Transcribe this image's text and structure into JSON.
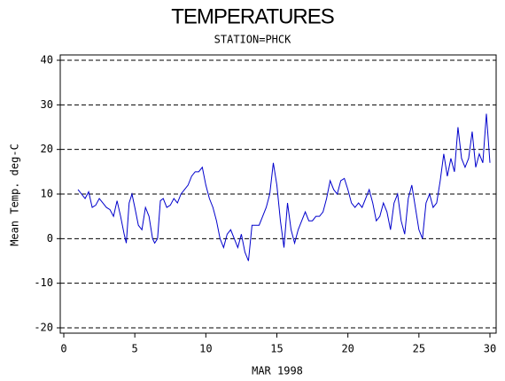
{
  "chart_data": {
    "type": "line",
    "title": "TEMPERATURES",
    "subtitle": "STATION=PHCK",
    "x_label": "MAR 1998",
    "y_label": "Mean Temp. deg-C",
    "x": [
      1,
      1.25,
      1.5,
      1.75,
      2,
      2.25,
      2.5,
      2.75,
      3,
      3.25,
      3.5,
      3.75,
      4,
      4.25,
      4.4,
      4.6,
      4.8,
      5,
      5.25,
      5.5,
      5.75,
      6,
      6.25,
      6.4,
      6.6,
      6.8,
      7,
      7.25,
      7.5,
      7.75,
      8,
      8.25,
      8.5,
      8.75,
      9,
      9.25,
      9.5,
      9.75,
      10,
      10.25,
      10.5,
      10.75,
      11,
      11.25,
      11.5,
      11.75,
      12,
      12.25,
      12.5,
      12.75,
      13,
      13.25,
      13.5,
      13.75,
      14,
      14.25,
      14.5,
      14.75,
      15,
      15.25,
      15.5,
      15.75,
      16,
      16.25,
      16.5,
      16.75,
      17,
      17.25,
      17.5,
      17.75,
      18,
      18.25,
      18.5,
      18.75,
      19,
      19.25,
      19.5,
      19.75,
      20,
      20.25,
      20.5,
      20.75,
      21,
      21.25,
      21.5,
      21.75,
      22,
      22.25,
      22.5,
      22.75,
      23,
      23.25,
      23.5,
      23.75,
      24,
      24.25,
      24.5,
      24.75,
      25,
      25.25,
      25.5,
      25.75,
      26,
      26.25,
      26.5,
      26.75,
      27,
      27.25,
      27.5,
      27.75,
      28,
      28.25,
      28.5,
      28.75,
      29,
      29.25,
      29.5,
      29.75,
      30
    ],
    "series": [
      {
        "name": "Mean Temp",
        "color": "#0000cc",
        "values": [
          11,
          10,
          9,
          10.5,
          7,
          7.5,
          9,
          8,
          7,
          6.5,
          5,
          8.5,
          5,
          1,
          -1,
          8,
          10,
          7,
          3,
          2,
          7,
          5,
          0,
          -1,
          0,
          8.5,
          9,
          7,
          7.5,
          9,
          8,
          10,
          11,
          12,
          14,
          15,
          15,
          16,
          12,
          9,
          7,
          4,
          0,
          -2,
          1,
          2,
          0,
          -2,
          1,
          -3,
          -5,
          3,
          3,
          3,
          5,
          7,
          10,
          17,
          12,
          4,
          -2,
          8,
          2,
          -1,
          2,
          4,
          6,
          4,
          4,
          5,
          5,
          6,
          9,
          13,
          11,
          10,
          13,
          13.5,
          11,
          8,
          7,
          8,
          7,
          9,
          11,
          8,
          4,
          5,
          8,
          6,
          2,
          8,
          10,
          4,
          1,
          9,
          12,
          7,
          2,
          0,
          8,
          10,
          7,
          8,
          13,
          19,
          14,
          18,
          15,
          25,
          18,
          16,
          18,
          24,
          16,
          19,
          17,
          28,
          17
        ]
      }
    ],
    "xlim": [
      0,
      30
    ],
    "xticks": [
      0,
      5,
      10,
      15,
      20,
      25,
      30
    ],
    "ylim": [
      -20,
      40
    ],
    "yticks": [
      -20,
      -10,
      0,
      10,
      20,
      30,
      40
    ],
    "grid": true
  }
}
